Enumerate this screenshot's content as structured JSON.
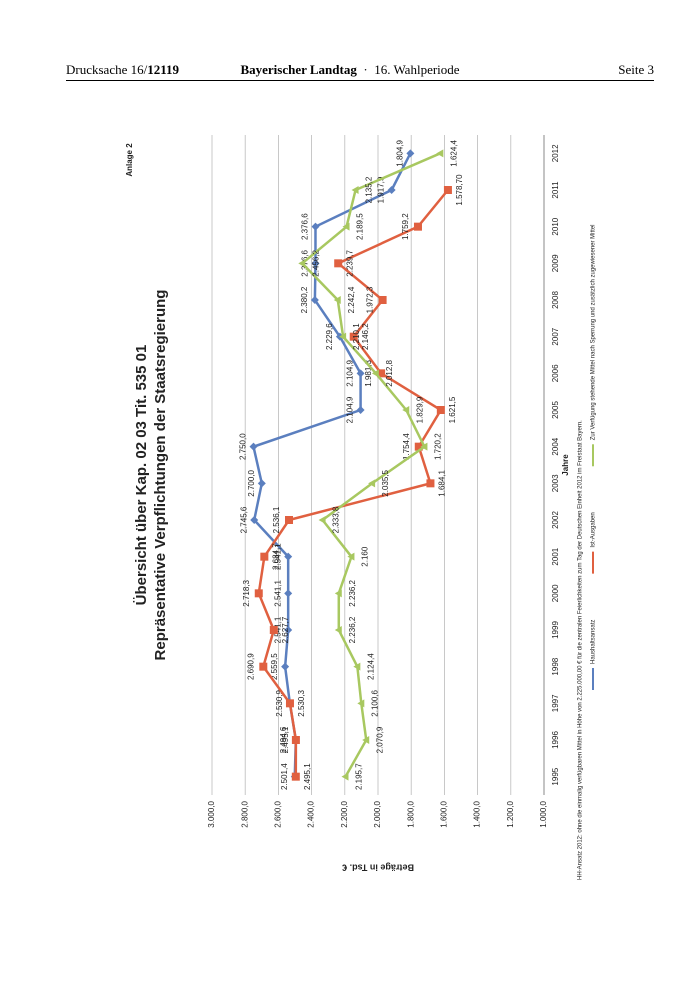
{
  "header": {
    "left": "Drucksache 16/",
    "left_bold": "12119",
    "center": "Bayerischer Landtag",
    "separator": "·",
    "center_right": "16. Wahlperiode",
    "right": "Seite 3"
  },
  "chart_data": {
    "type": "line",
    "title": "Übersicht über Kap. 02 03 Tit. 535 01",
    "subtitle": "Repräsentative Verpflichtungen der Staatsregierung",
    "annotation": "Anlage 2",
    "x_label": "Jahre",
    "y_label": "Beträge in Tsd. €",
    "footnote": "HH-Ansatz 2012: ohne die einmalig verfügbaren Mittel in Höhe von 2.225.000,00 € für die zentralen Feierlichkeiten zum Tag der Deutschen Einheit 2012 im Freistaat Bayern.",
    "categories": [
      "1995",
      "1996",
      "1997",
      "1998",
      "1999",
      "2000",
      "2001",
      "2002",
      "2003",
      "2004",
      "2005",
      "2006",
      "2007",
      "2008",
      "2009",
      "2010",
      "2011",
      "2012"
    ],
    "ylim": [
      1000,
      3000
    ],
    "yticks": [
      {
        "value": 1000,
        "label": "1.000,0"
      },
      {
        "value": 1200,
        "label": "1.200,0"
      },
      {
        "value": 1400,
        "label": "1.400,0"
      },
      {
        "value": 1600,
        "label": "1.600,0"
      },
      {
        "value": 1800,
        "label": "1.800,0"
      },
      {
        "value": 2000,
        "label": "2.000,0"
      },
      {
        "value": 2200,
        "label": "2.200,0"
      },
      {
        "value": 2400,
        "label": "2.400,0"
      },
      {
        "value": 2600,
        "label": "2.600,0"
      },
      {
        "value": 2800,
        "label": "2.800,0"
      },
      {
        "value": 3000,
        "label": "3.000,0"
      }
    ],
    "grid": true,
    "series": [
      {
        "name": "Haushaltsansatz",
        "color": "#5b7fbf",
        "marker": "diamond",
        "values": [
          2501.4,
          2495.1,
          2530.9,
          2559.5,
          2541.1,
          2541.1,
          2541.1,
          2745.6,
          2700.0,
          2750.0,
          2104.9,
          2104.9,
          2229.6,
          2380.2,
          2376.6,
          2376.6,
          1917.9,
          1804.9
        ],
        "value_labels": [
          "2.501,4",
          "2.495,1",
          "2.530,9",
          "2.559,5",
          "2.541,1",
          "2.541,1",
          "2.541,1",
          "2.745,6",
          "2.700,0",
          "2.750,0",
          "2.104,9",
          "2.104,9",
          "2.229,6",
          "2.380,2",
          "2.376,6",
          "2.376,6",
          "1.917,9",
          "1.804,9"
        ]
      },
      {
        "name": "Ist-Ausgaben",
        "color": "#e06040",
        "marker": "square",
        "values": [
          2495.1,
          2494.6,
          2530.3,
          2690.9,
          2627.7,
          2718.3,
          2684.7,
          2536.1,
          1684.1,
          1754.4,
          1621.5,
          1981.3,
          2146.2,
          1972.3,
          2239.7,
          1759.2,
          1578.7,
          null
        ],
        "value_labels": [
          "2.495,1",
          "2.494,6",
          "2.530,3",
          "2.690,9",
          "2.627,7",
          "2.718,3",
          "2.684,7",
          "2.536,1",
          "1.684,1",
          "1.754,4",
          "1.621,5",
          "1.981,3",
          "2.146,2",
          "1.972,3",
          "2.239,7",
          "1.759,2",
          "1.578,70",
          null
        ]
      },
      {
        "name": "Zur Verfügung stehende Mittel nach Sperrung und zusätzlich zugewiesener Mittel",
        "color": "#a8c860",
        "marker": "triangle",
        "values": [
          2195.7,
          2070.9,
          2100.6,
          2124.4,
          2236.2,
          2236.2,
          2160,
          2333.8,
          2035.5,
          1720.2,
          1829.9,
          2012.8,
          2210.1,
          2242.4,
          2456.2,
          2189.5,
          2135.2,
          1624.4
        ],
        "value_labels": [
          "2.195,7",
          "2.070,9",
          "2.100,6",
          "2.124,4",
          "2.236,2",
          "2.236,2",
          "2.160",
          "2.333,8",
          "2.035,5",
          "1.720,2",
          "1.829,9",
          "2.012,8",
          "2.210,1",
          "2.242,4",
          "2.456,2",
          "2.189,5",
          "2.135,2",
          "1.624,4"
        ]
      }
    ]
  }
}
